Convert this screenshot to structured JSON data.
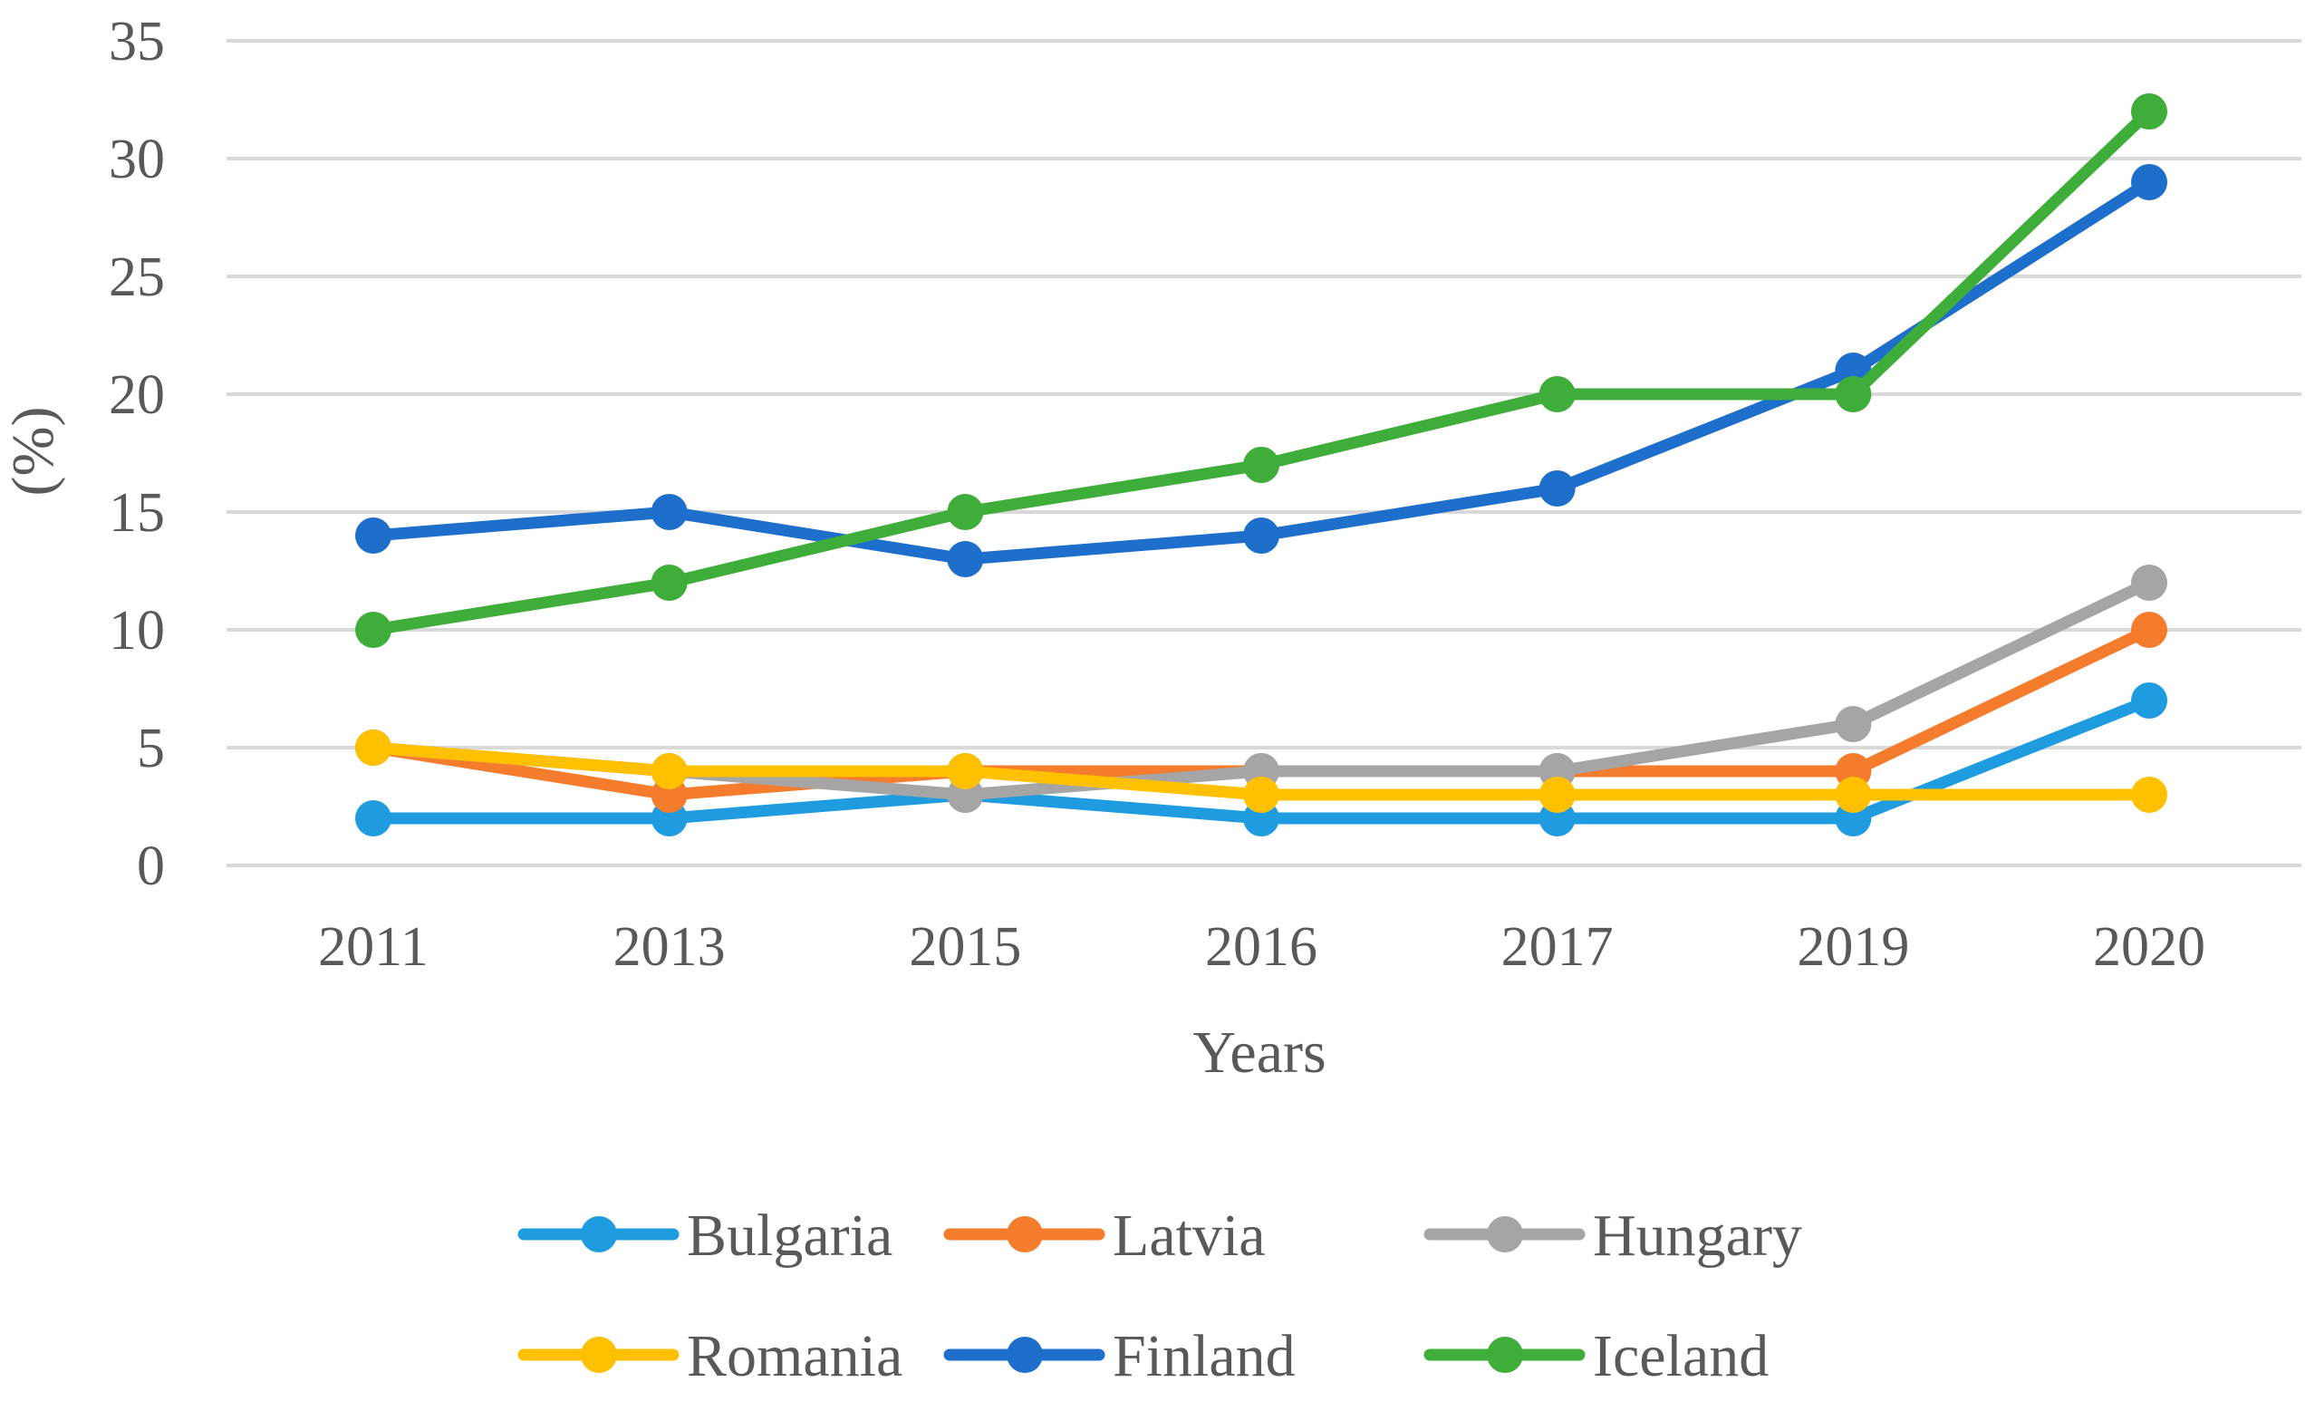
{
  "chart_data": {
    "type": "line",
    "title": "",
    "xlabel": "Years",
    "ylabel": "(%)",
    "categories": [
      "2011",
      "2013",
      "2015",
      "2016",
      "2017",
      "2019",
      "2020"
    ],
    "ylim": [
      0,
      35
    ],
    "yticks": [
      "0",
      "5",
      "10",
      "15",
      "20",
      "25",
      "30",
      "35"
    ],
    "grid": true,
    "legend_position": "bottom",
    "series": [
      {
        "name": "Bulgaria",
        "color": "#1f9ce0",
        "values": [
          2,
          2,
          3,
          2,
          2,
          2,
          7
        ]
      },
      {
        "name": "Latvia",
        "color": "#f47c2c",
        "values": [
          5,
          3,
          4,
          4,
          4,
          4,
          10
        ]
      },
      {
        "name": "Hungary",
        "color": "#a5a5a5",
        "values": [
          5,
          4,
          3,
          4,
          4,
          6,
          12
        ]
      },
      {
        "name": "Romania",
        "color": "#ffc000",
        "values": [
          5,
          4,
          4,
          3,
          3,
          3,
          3
        ]
      },
      {
        "name": "Finland",
        "color": "#1e6fcc",
        "values": [
          14,
          15,
          13,
          14,
          16,
          21,
          29
        ]
      },
      {
        "name": "Iceland",
        "color": "#3fad3a",
        "values": [
          10,
          12,
          15,
          17,
          20,
          20,
          32
        ]
      }
    ]
  }
}
